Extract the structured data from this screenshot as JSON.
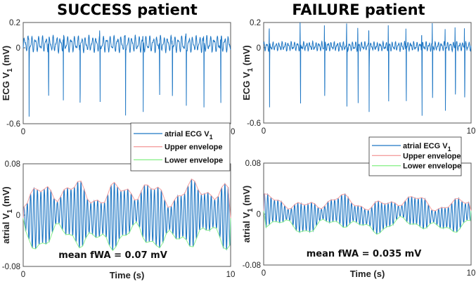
{
  "chart_data": [
    {
      "type": "line",
      "panel": "top-left",
      "title": "SUCCESS patient",
      "ylabel": "ECG V1 (mV)",
      "ylabel_main": "ECG V",
      "ylabel_sub": "1",
      "ylabel_unit": " (mV)",
      "xlim": [
        0,
        10
      ],
      "ylim": [
        -0.6,
        0.2
      ],
      "xticks": [
        "0",
        "10"
      ],
      "yticks": [
        "0.2",
        "0",
        "-0.6"
      ],
      "series": [
        {
          "color": "#1f77c4",
          "r_peak_times_s": [
            0.28,
            1.22,
            1.93,
            2.74,
            3.7,
            4.93,
            5.78,
            6.57,
            7.19,
            7.86,
            8.71,
            9.52
          ],
          "r_peak_values_mV": [
            -0.54,
            -0.51,
            -0.49,
            -0.56,
            -0.5,
            -0.54,
            -0.56,
            -0.47,
            -0.49,
            -0.53,
            -0.55,
            -0.59
          ]
        }
      ],
      "grid": false
    },
    {
      "type": "line",
      "panel": "top-right",
      "title": "FAILURE patient",
      "ylabel": "ECG V1 (mV)",
      "ylabel_main": "ECG V",
      "ylabel_sub": "1",
      "ylabel_unit": " (mV)",
      "xlim": [
        0,
        10
      ],
      "ylim": [
        -0.6,
        0.2
      ],
      "xticks": [
        "0",
        "10"
      ],
      "yticks": [
        "0.2",
        "0",
        "-0.6"
      ],
      "series": [
        {
          "color": "#1f77c4",
          "r_peak_times_s": [
            0.28,
            1.77,
            2.94,
            4.01,
            4.55,
            5.08,
            6.02,
            6.87,
            7.63,
            8.14,
            8.76,
            9.24,
            9.69
          ],
          "r_peak_values_mV": [
            -0.52,
            -0.575,
            -0.54,
            -0.55,
            -0.48,
            -0.5,
            -0.54,
            -0.51,
            -0.54,
            -0.54,
            -0.54,
            -0.48,
            -0.5
          ]
        }
      ],
      "grid": false
    },
    {
      "type": "line",
      "panel": "bottom-left",
      "xlabel": "Time (s)",
      "ylabel": "atrial V1 (mV)",
      "ylabel_main": "atrial V",
      "ylabel_sub": "1",
      "ylabel_unit": " (mV)",
      "xlim": [
        0,
        10
      ],
      "ylim": [
        -0.08,
        0.08
      ],
      "xticks": [
        "0",
        "10"
      ],
      "yticks": [
        "0.08",
        "0",
        "-0.08"
      ],
      "annotation": "mean fWA = 0.07 mV",
      "mean_fwa_mV": 0.07,
      "legend": {
        "position": "top-right",
        "entries": [
          {
            "label": "atrial ECG V",
            "sub": "1",
            "color": "#1f77c4"
          },
          {
            "label": "Upper envelope",
            "color": "#f4a0a0"
          },
          {
            "label": "Lower envelope",
            "color": "#8ef08e"
          }
        ]
      },
      "grid": false
    },
    {
      "type": "line",
      "panel": "bottom-right",
      "xlabel": "Time (s)",
      "ylabel": "atrial V1 (mV)",
      "ylabel_main": "atrial V",
      "ylabel_sub": "1",
      "ylabel_unit": " (mV)",
      "xlim": [
        0,
        10
      ],
      "ylim": [
        -0.08,
        0.08
      ],
      "xticks": [
        "0",
        "10"
      ],
      "yticks": [
        "0.08",
        "0",
        "-0.08"
      ],
      "annotation": "mean fWA = 0.035 mV",
      "mean_fwa_mV": 0.035,
      "legend": {
        "position": "top-right",
        "entries": [
          {
            "label": "atrial ECG V",
            "sub": "1",
            "color": "#1f77c4"
          },
          {
            "label": "Upper envelope",
            "color": "#f4a0a0"
          },
          {
            "label": "Lower envelope",
            "color": "#8ef08e"
          }
        ]
      },
      "grid": false
    }
  ]
}
